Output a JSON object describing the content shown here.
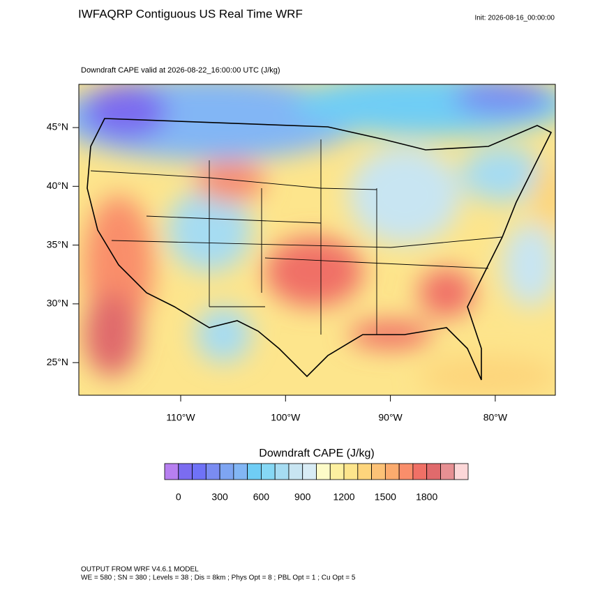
{
  "header": {
    "title": "IWFAQRP Contiguous US Real Time WRF",
    "init": "Init: 2026-08-16_00:00:00",
    "subtitle": "Downdraft CAPE valid at 2026-08-22_16:00:00 UTC   (J/kg)"
  },
  "map": {
    "lat_labels": [
      "45°N",
      "40°N",
      "35°N",
      "30°N",
      "25°N"
    ],
    "lon_labels": [
      "110°W",
      "100°W",
      "90°W",
      "80°W"
    ]
  },
  "colorbar": {
    "title": "Downdraft CAPE  (J/kg)",
    "range": [
      -100,
      2100
    ],
    "ticks": [
      0,
      300,
      600,
      900,
      1200,
      1500,
      1800
    ],
    "colors": [
      "#b77ff0",
      "#7b6cf0",
      "#6f72f7",
      "#7a8cf2",
      "#7ea5f2",
      "#82b6f5",
      "#6fcdf5",
      "#86d8f5",
      "#a6dcf2",
      "#c8e5f2",
      "#d8ecf5",
      "#fdfbc8",
      "#fdf0a0",
      "#fde58c",
      "#fdd57c",
      "#fcc277",
      "#fbab6e",
      "#f98e6b",
      "#f07066",
      "#e06a6c",
      "#e79093",
      "#fcd7d8"
    ]
  },
  "footer": {
    "line1": "OUTPUT FROM WRF V4.6.1 MODEL",
    "line2": "WE = 580 ; SN = 380 ; Levels = 38 ; Dis = 8km ; Phys Opt = 8 ; PBL Opt = 1 ; Cu Opt = 5"
  }
}
